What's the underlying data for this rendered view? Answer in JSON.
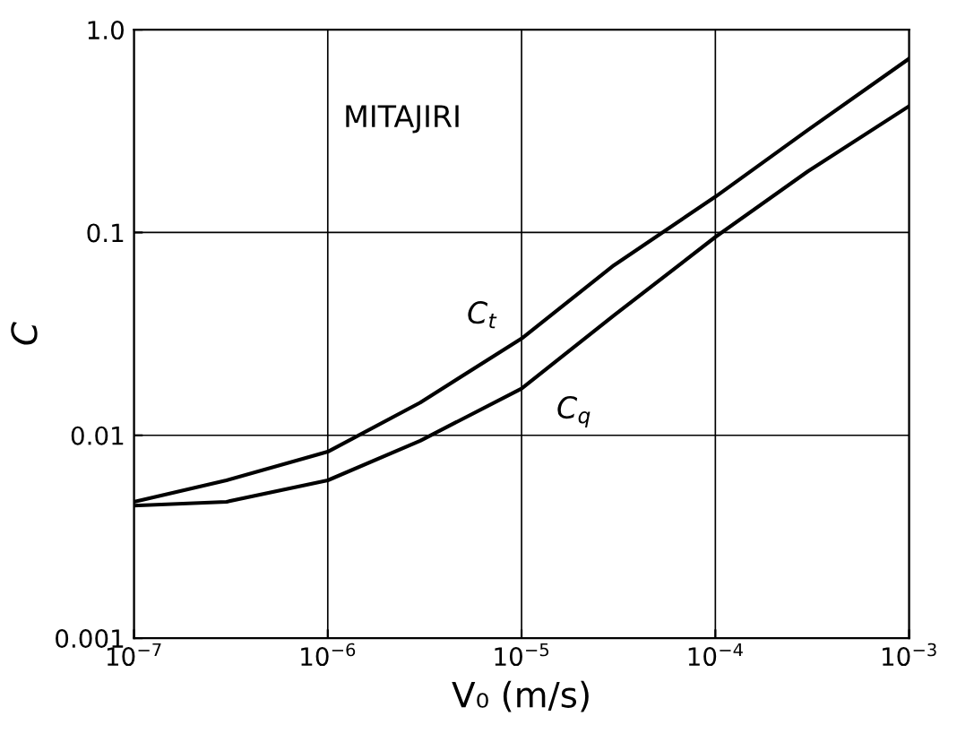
{
  "chart_data": {
    "type": "line",
    "xlabel": "V₀ (m/s)",
    "ylabel": "C",
    "log": "xy",
    "grid": true,
    "x": [
      1e-07,
      3e-07,
      1e-06,
      3e-06,
      1e-05,
      3e-05,
      0.0001,
      0.0003,
      0.001
    ],
    "series": [
      {
        "name": "C$_{t}$",
        "color": "#000000",
        "values": [
          0.0047,
          0.006,
          0.0083,
          0.0145,
          0.03,
          0.069,
          0.15,
          0.32,
          0.72
        ]
      },
      {
        "name": "C$_{q}$",
        "color": "#000000",
        "values": [
          0.0045,
          0.0047,
          0.006,
          0.0094,
          0.017,
          0.039,
          0.095,
          0.2,
          0.42
        ]
      }
    ],
    "xlim": [
      1e-07,
      0.001
    ],
    "ylim": [
      0.001,
      1.0
    ],
    "xticks": [
      {
        "value": 1e-07,
        "label": "10$^{−7}$"
      },
      {
        "value": 1e-06,
        "label": "10$^{−6}$"
      },
      {
        "value": 1e-05,
        "label": "10$^{−5}$"
      },
      {
        "value": 0.0001,
        "label": "10$^{−4}$"
      },
      {
        "value": 0.001,
        "label": "10$^{−3}$"
      }
    ],
    "yticks": [
      0.001,
      0.01,
      0.1,
      {
        "value": 1.0,
        "label": "1.0"
      }
    ],
    "annotations": [
      "MITAJIRI"
    ]
  }
}
